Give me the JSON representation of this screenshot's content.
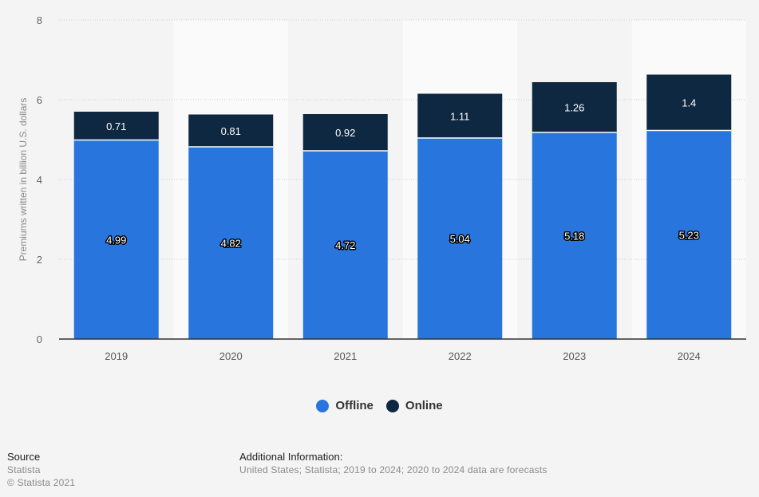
{
  "chart_data": {
    "type": "bar",
    "stacked": true,
    "title": "",
    "xlabel": "",
    "ylabel": "Premiums written in billion U.S. dollars",
    "ylim": [
      0,
      8
    ],
    "yticks": [
      0,
      2,
      4,
      6,
      8
    ],
    "grid": true,
    "categories": [
      "2019",
      "2020",
      "2021",
      "2022",
      "2023",
      "2024"
    ],
    "series": [
      {
        "name": "Offline",
        "color": "#2876dd",
        "values": [
          4.99,
          4.82,
          4.72,
          5.04,
          5.18,
          5.23
        ],
        "labels": [
          "4.99",
          "4.82",
          "4.72",
          "5.04",
          "5.18",
          "5.23"
        ]
      },
      {
        "name": "Online",
        "color": "#0f2841",
        "values": [
          0.71,
          0.81,
          0.92,
          1.11,
          1.26,
          1.4
        ],
        "labels": [
          "0.71",
          "0.81",
          "0.92",
          "1.11",
          "1.26",
          "1.4"
        ]
      }
    ],
    "legend_position": "bottom"
  },
  "footer": {
    "source_heading": "Source",
    "source_name": "Statista",
    "copyright": "© Statista 2021",
    "info_heading": "Additional Information:",
    "info_text": "United States; Statista; 2019 to 2024; 2020 to 2024 data are forecasts"
  }
}
